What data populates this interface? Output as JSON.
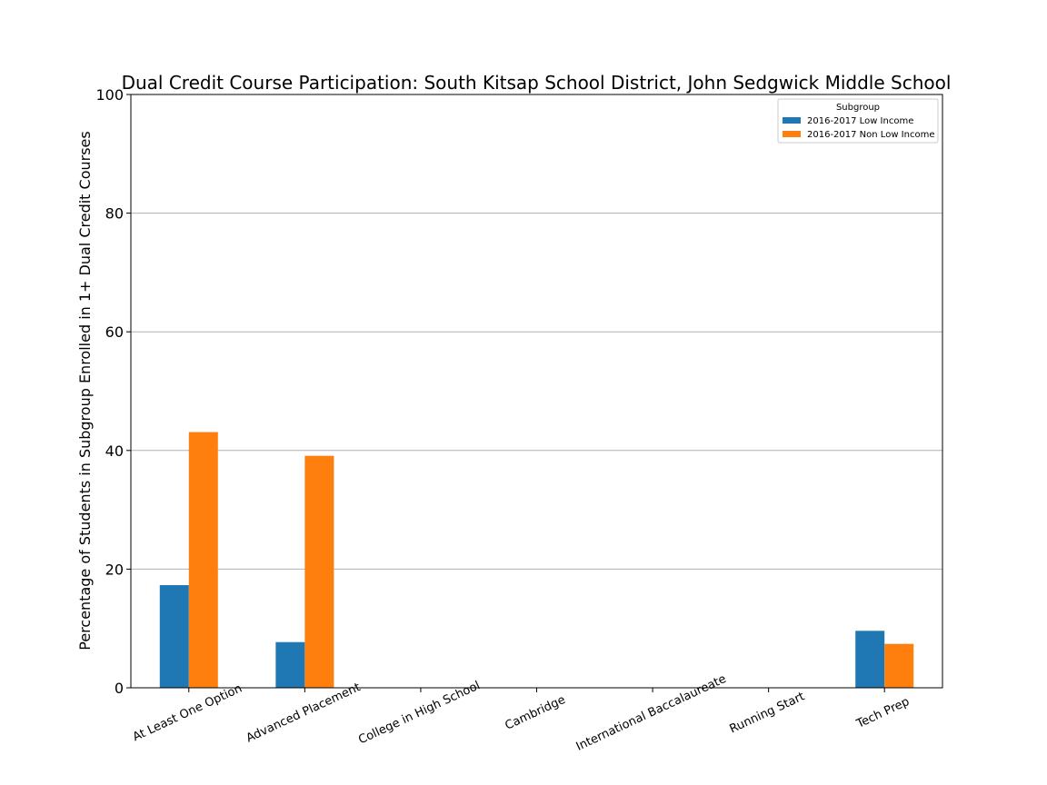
{
  "chart_data": {
    "type": "bar",
    "title": "Dual Credit Course Participation: South Kitsap School District, John Sedgwick Middle School",
    "xlabel": "",
    "ylabel": "Percentage of Students in Subgroup Enrolled in 1+ Dual Credit Courses",
    "ylim": [
      0,
      100
    ],
    "yticks": [
      0,
      20,
      40,
      60,
      80,
      100
    ],
    "grid": "horizontal",
    "legend": {
      "title": "Subgroup",
      "placement": "top-right"
    },
    "categories": [
      "At Least One Option",
      "Advanced Placement",
      "College in High School",
      "Cambridge",
      "International Baccalaureate",
      "Running Start",
      "Tech Prep"
    ],
    "series": [
      {
        "name": "2016-2017 Low Income",
        "color": "#1f77b4",
        "values": [
          17.3,
          7.7,
          0,
          0,
          0,
          0,
          9.6
        ]
      },
      {
        "name": "2016-2017 Non Low Income",
        "color": "#ff7f0e",
        "values": [
          43.1,
          39.1,
          0,
          0,
          0,
          0,
          7.4
        ]
      }
    ]
  }
}
